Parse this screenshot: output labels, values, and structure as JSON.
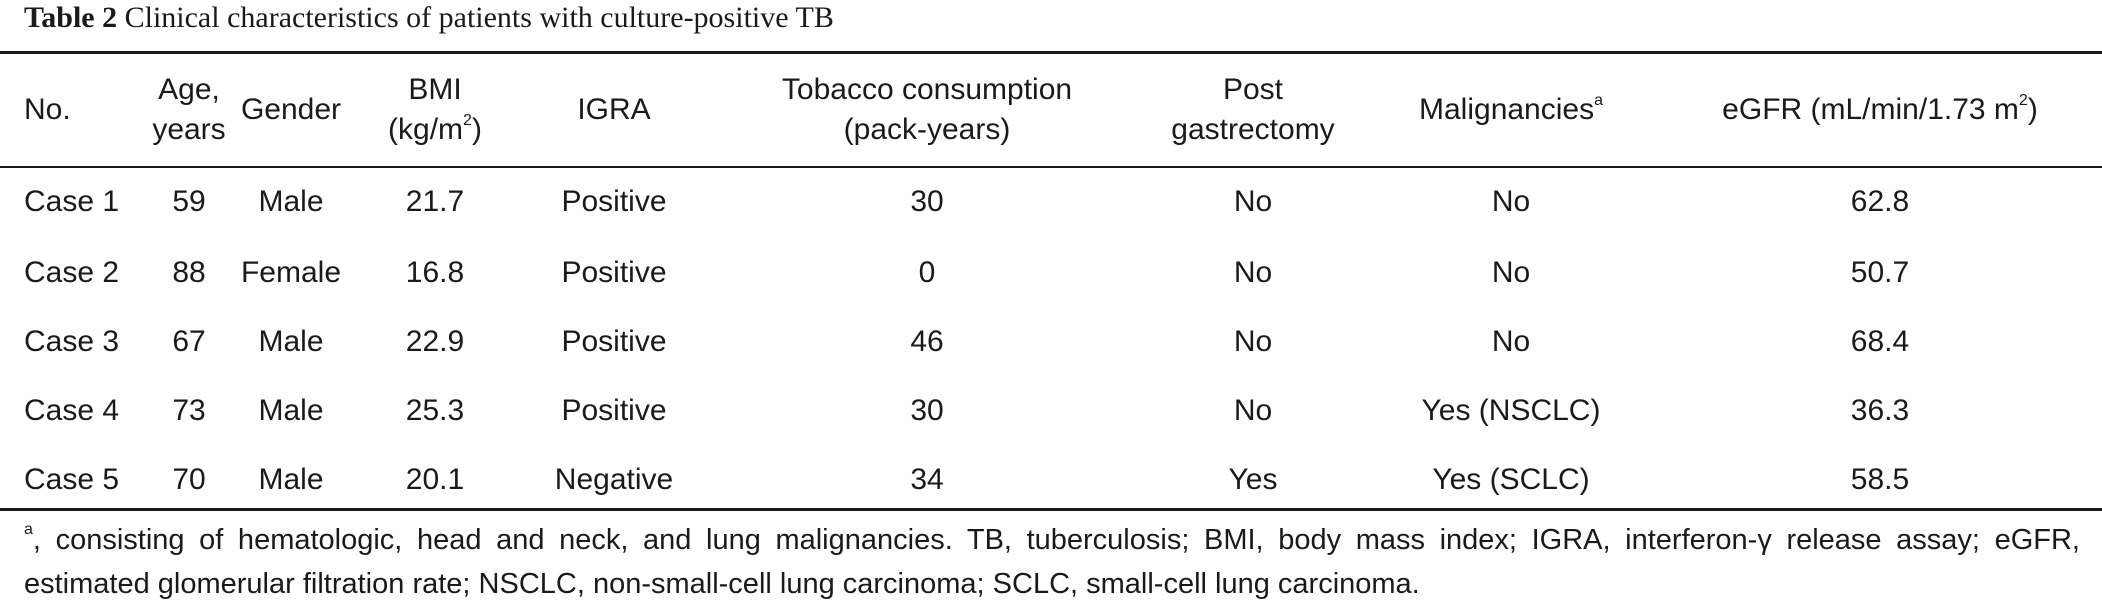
{
  "caption": {
    "label": "Table 2",
    "text": "Clinical characteristics of patients with culture-positive TB"
  },
  "table": {
    "headers": {
      "no": "No.",
      "age_line1": "Age,",
      "age_line2": "years",
      "gender": "Gender",
      "bmi_line1": "BMI",
      "bmi_line2_pre": "(kg/m",
      "bmi_line2_sup": "2",
      "bmi_line2_post": ")",
      "igra": "IGRA",
      "tobacco_line1": "Tobacco consumption",
      "tobacco_line2": "(pack-years)",
      "post_line1": "Post",
      "post_line2": "gastrectomy",
      "malignancies": "Malignancies",
      "malignancies_sup": "a",
      "egfr_pre": "eGFR (mL/min/1.73 m",
      "egfr_sup": "2",
      "egfr_post": ")"
    },
    "rows": [
      {
        "no": "Case 1",
        "age": "59",
        "gender": "Male",
        "bmi": "21.7",
        "igra": "Positive",
        "tobacco": "30",
        "post_gastrectomy": "No",
        "malignancies": "No",
        "egfr": "62.8"
      },
      {
        "no": "Case 2",
        "age": "88",
        "gender": "Female",
        "bmi": "16.8",
        "igra": "Positive",
        "tobacco": "0",
        "post_gastrectomy": "No",
        "malignancies": "No",
        "egfr": "50.7"
      },
      {
        "no": "Case 3",
        "age": "67",
        "gender": "Male",
        "bmi": "22.9",
        "igra": "Positive",
        "tobacco": "46",
        "post_gastrectomy": "No",
        "malignancies": "No",
        "egfr": "68.4"
      },
      {
        "no": "Case 4",
        "age": "73",
        "gender": "Male",
        "bmi": "25.3",
        "igra": "Positive",
        "tobacco": "30",
        "post_gastrectomy": "No",
        "malignancies": "Yes (NSCLC)",
        "egfr": "36.3"
      },
      {
        "no": "Case 5",
        "age": "70",
        "gender": "Male",
        "bmi": "20.1",
        "igra": "Negative",
        "tobacco": "34",
        "post_gastrectomy": "Yes",
        "malignancies": "Yes (SCLC)",
        "egfr": "58.5"
      }
    ]
  },
  "footnote": {
    "marker": "a",
    "text": ", consisting of hematologic, head and neck, and lung malignancies. TB, tuberculosis; BMI, body mass index; IGRA, interferon-γ release assay; eGFR, estimated glomerular filtration rate; NSCLC, non-small-cell lung carcinoma; SCLC, small-cell lung carcinoma."
  }
}
